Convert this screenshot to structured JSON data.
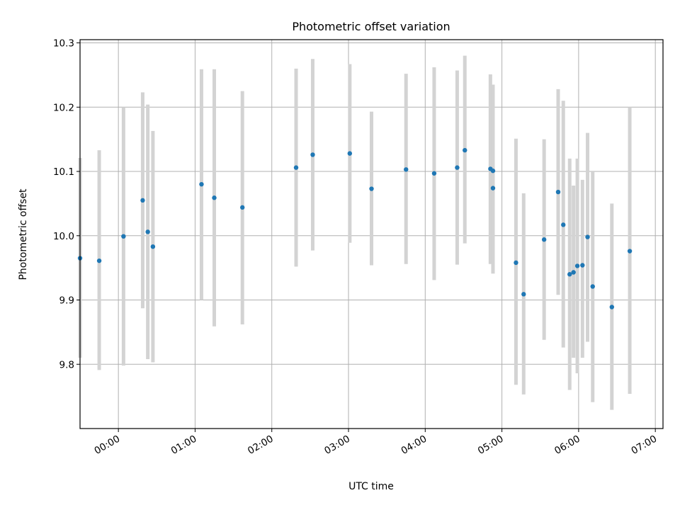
{
  "chart_data": {
    "type": "scatter",
    "title": "Photometric offset variation",
    "xlabel": "UTC time",
    "ylabel": "Photometric offset",
    "xlim": [
      "-00:30",
      "07:06"
    ],
    "ylim": [
      9.7,
      10.305
    ],
    "x_ticks": [
      "00:00",
      "01:00",
      "02:00",
      "03:00",
      "04:00",
      "05:00",
      "06:00",
      "07:00"
    ],
    "y_ticks": [
      "9.8",
      "9.9",
      "10.0",
      "10.1",
      "10.2",
      "10.3"
    ],
    "grid": true,
    "legend": "none",
    "colors": {
      "point": "#1f77b4",
      "errorbar": "#d3d3d3",
      "grid": "#b0b0b0",
      "axes": "#000000"
    },
    "series": [
      {
        "points": [
          {
            "x": "23:30",
            "y": 9.965,
            "ylow": 9.81,
            "yhigh": 10.121
          },
          {
            "x": "23:45",
            "y": 9.961,
            "ylow": 9.791,
            "yhigh": 10.133
          },
          {
            "x": "00:04",
            "y": 9.999,
            "ylow": 9.798,
            "yhigh": 10.2
          },
          {
            "x": "00:19",
            "y": 10.055,
            "ylow": 9.887,
            "yhigh": 10.223
          },
          {
            "x": "00:23",
            "y": 10.006,
            "ylow": 9.808,
            "yhigh": 10.204
          },
          {
            "x": "00:27",
            "y": 9.983,
            "ylow": 9.803,
            "yhigh": 10.163
          },
          {
            "x": "01:05",
            "y": 10.08,
            "ylow": 9.9,
            "yhigh": 10.259
          },
          {
            "x": "01:15",
            "y": 10.059,
            "ylow": 9.859,
            "yhigh": 10.259
          },
          {
            "x": "01:37",
            "y": 10.044,
            "ylow": 9.862,
            "yhigh": 10.225
          },
          {
            "x": "02:19",
            "y": 10.106,
            "ylow": 9.952,
            "yhigh": 10.26
          },
          {
            "x": "02:32",
            "y": 10.126,
            "ylow": 9.977,
            "yhigh": 10.275
          },
          {
            "x": "03:01",
            "y": 10.128,
            "ylow": 9.989,
            "yhigh": 10.267
          },
          {
            "x": "03:18",
            "y": 10.073,
            "ylow": 9.954,
            "yhigh": 10.193
          },
          {
            "x": "03:45",
            "y": 10.103,
            "ylow": 9.956,
            "yhigh": 10.252
          },
          {
            "x": "04:07",
            "y": 10.097,
            "ylow": 9.931,
            "yhigh": 10.262
          },
          {
            "x": "04:25",
            "y": 10.106,
            "ylow": 9.955,
            "yhigh": 10.257
          },
          {
            "x": "04:31",
            "y": 10.133,
            "ylow": 9.988,
            "yhigh": 10.28
          },
          {
            "x": "04:51",
            "y": 10.104,
            "ylow": 9.956,
            "yhigh": 10.251
          },
          {
            "x": "04:53",
            "y": 10.101,
            "ylow": 9.965,
            "yhigh": 10.235
          },
          {
            "x": "04:53",
            "y": 10.074,
            "ylow": 9.941,
            "yhigh": 10.207
          },
          {
            "x": "05:11",
            "y": 9.958,
            "ylow": 9.768,
            "yhigh": 10.151
          },
          {
            "x": "05:17",
            "y": 9.909,
            "ylow": 9.753,
            "yhigh": 10.066
          },
          {
            "x": "05:33",
            "y": 9.994,
            "ylow": 9.838,
            "yhigh": 10.15
          },
          {
            "x": "05:44",
            "y": 10.068,
            "ylow": 9.908,
            "yhigh": 10.228
          },
          {
            "x": "05:48",
            "y": 10.017,
            "ylow": 9.826,
            "yhigh": 10.21
          },
          {
            "x": "05:53",
            "y": 9.94,
            "ylow": 9.76,
            "yhigh": 10.12
          },
          {
            "x": "05:56",
            "y": 9.943,
            "ylow": 9.81,
            "yhigh": 10.078
          },
          {
            "x": "05:59",
            "y": 9.953,
            "ylow": 9.786,
            "yhigh": 10.12
          },
          {
            "x": "06:03",
            "y": 9.954,
            "ylow": 9.81,
            "yhigh": 10.087
          },
          {
            "x": "06:07",
            "y": 9.998,
            "ylow": 9.835,
            "yhigh": 10.16
          },
          {
            "x": "06:11",
            "y": 9.921,
            "ylow": 9.741,
            "yhigh": 10.1
          },
          {
            "x": "06:26",
            "y": 9.889,
            "ylow": 9.729,
            "yhigh": 10.05
          },
          {
            "x": "06:40",
            "y": 9.976,
            "ylow": 9.754,
            "yhigh": 10.2
          }
        ]
      }
    ]
  }
}
